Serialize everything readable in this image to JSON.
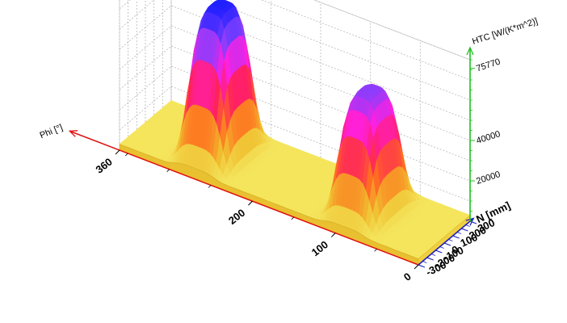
{
  "chart_data": {
    "type": "surface3d",
    "x_axis": {
      "label": "Phi [°]",
      "ticks": [
        "360",
        "200",
        "100",
        "0"
      ],
      "range": [
        0,
        360
      ],
      "color": "#e01010"
    },
    "y_axis": {
      "label": "N [mm]",
      "ticks": [
        "300",
        "200",
        "100",
        "0",
        "-100",
        "-200",
        "-300"
      ],
      "range": [
        -300,
        300
      ],
      "color": "#2020c0"
    },
    "z_axis": {
      "label": "HTC [W/(K*m^2)]",
      "ticks": [
        "20000",
        "40000",
        "75770"
      ],
      "range": [
        0,
        80000
      ],
      "color": "#20c020"
    },
    "peaks": [
      {
        "phi": 270,
        "htc": 75770
      },
      {
        "phi": 90,
        "htc": 62000
      }
    ],
    "base_htc": 3000,
    "colormap": [
      "#f5f06a",
      "#f0c030",
      "#ff7020",
      "#ff2060",
      "#ff20e0",
      "#8040ff",
      "#2020ff"
    ],
    "grid": true
  }
}
